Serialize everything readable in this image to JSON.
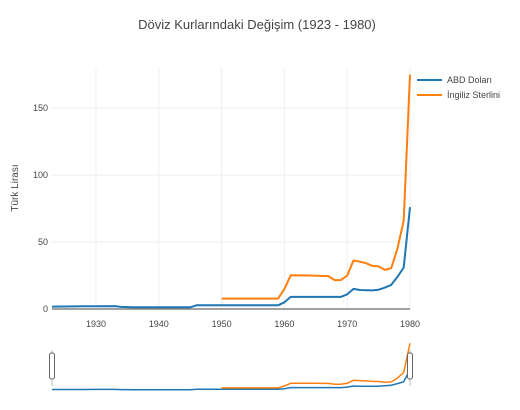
{
  "chart_data": {
    "type": "line",
    "title": "Döviz Kurlarındaki Değişim (1923 - 1980)",
    "xlabel": "",
    "ylabel": "Türk Lirası",
    "xlim": [
      1923,
      1980
    ],
    "ylim": [
      0,
      180
    ],
    "x_ticks": [
      1930,
      1940,
      1950,
      1960,
      1970,
      1980
    ],
    "y_ticks": [
      0,
      50,
      100,
      150
    ],
    "grid": true,
    "legend_position": "top-right",
    "has_range_slider": true,
    "series": [
      {
        "name": "ABD Doları",
        "color": "#1f77b4",
        "points": [
          [
            1923,
            1.8
          ],
          [
            1925,
            1.9
          ],
          [
            1928,
            2.0
          ],
          [
            1930,
            2.1
          ],
          [
            1933,
            2.2
          ],
          [
            1934,
            1.6
          ],
          [
            1936,
            1.3
          ],
          [
            1938,
            1.3
          ],
          [
            1940,
            1.3
          ],
          [
            1944,
            1.3
          ],
          [
            1945,
            1.3
          ],
          [
            1946,
            2.8
          ],
          [
            1950,
            2.8
          ],
          [
            1955,
            2.8
          ],
          [
            1959,
            2.8
          ],
          [
            1960,
            5.0
          ],
          [
            1961,
            9.0
          ],
          [
            1965,
            9.0
          ],
          [
            1969,
            9.0
          ],
          [
            1970,
            11.0
          ],
          [
            1971,
            15.0
          ],
          [
            1972,
            14.2
          ],
          [
            1974,
            13.9
          ],
          [
            1975,
            14.4
          ],
          [
            1976,
            16.0
          ],
          [
            1977,
            18.0
          ],
          [
            1978,
            24.0
          ],
          [
            1979,
            31.0
          ],
          [
            1980,
            76.0
          ]
        ]
      },
      {
        "name": "İngiliz Sterlini",
        "color": "#ff7f0e",
        "points": [
          [
            1950,
            7.8
          ],
          [
            1955,
            7.8
          ],
          [
            1959,
            7.8
          ],
          [
            1960,
            15.0
          ],
          [
            1961,
            25.2
          ],
          [
            1964,
            25.0
          ],
          [
            1967,
            24.6
          ],
          [
            1968,
            21.6
          ],
          [
            1969,
            21.6
          ],
          [
            1970,
            25.0
          ],
          [
            1971,
            36.2
          ],
          [
            1972,
            35.3
          ],
          [
            1973,
            34.2
          ],
          [
            1974,
            32.2
          ],
          [
            1975,
            31.8
          ],
          [
            1976,
            29.2
          ],
          [
            1977,
            30.5
          ],
          [
            1978,
            45.0
          ],
          [
            1979,
            66.0
          ],
          [
            1980,
            175.0
          ]
        ]
      }
    ]
  }
}
